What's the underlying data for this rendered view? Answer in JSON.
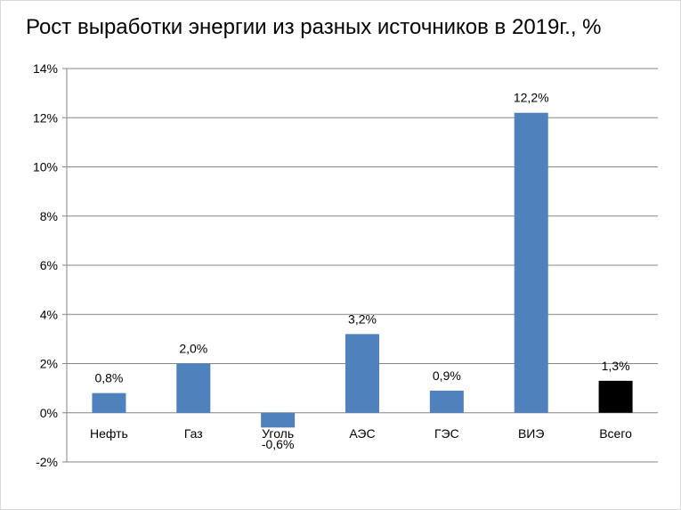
{
  "chart_data": {
    "type": "bar",
    "title": "Рост выработки энергии из разных источников в 2019г., %",
    "categories": [
      "Нефть",
      "Газ",
      "Уголь",
      "АЭС",
      "ГЭС",
      "ВИЭ",
      "Всего"
    ],
    "values": [
      0.8,
      2.0,
      -0.6,
      3.2,
      0.9,
      12.2,
      1.3
    ],
    "data_labels": [
      "0,8%",
      "2,0%",
      "-0,6%",
      "3,2%",
      "0,9%",
      "12,2%",
      "1,3%"
    ],
    "bar_colors": [
      "#4f81bd",
      "#4f81bd",
      "#4f81bd",
      "#4f81bd",
      "#4f81bd",
      "#4f81bd",
      "#000000"
    ],
    "ylim": [
      -2,
      14
    ],
    "yticks": [
      -2,
      0,
      2,
      4,
      6,
      8,
      10,
      12,
      14
    ],
    "ytick_labels": [
      "-2%",
      "0%",
      "2%",
      "4%",
      "6%",
      "8%",
      "10%",
      "12%",
      "14%"
    ],
    "xlabel": "",
    "ylabel": "",
    "grid": true,
    "legend": "none",
    "gridline_color": "#868686"
  }
}
